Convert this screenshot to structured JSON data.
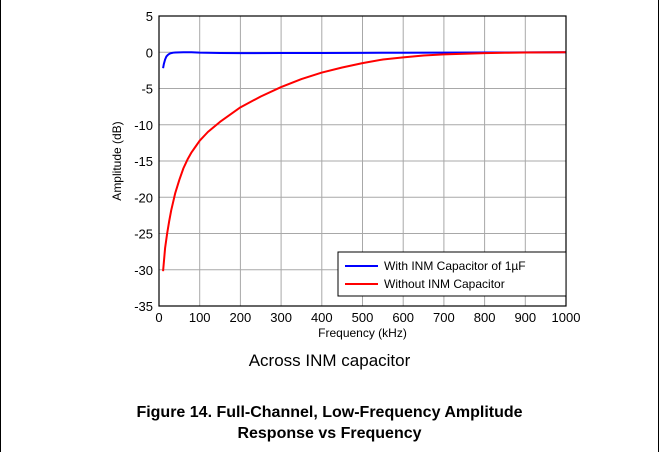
{
  "chart_data": {
    "type": "line",
    "title": "",
    "xlabel": "Frequency (kHz)",
    "ylabel": "Amplitude (dB)",
    "xlim": [
      0,
      1000
    ],
    "ylim": [
      -35,
      5
    ],
    "xticks": [
      0,
      100,
      200,
      300,
      400,
      500,
      600,
      700,
      800,
      900,
      1000
    ],
    "yticks": [
      5,
      0,
      -5,
      -10,
      -15,
      -20,
      -25,
      -30,
      -35
    ],
    "grid": true,
    "legend_position": "bottom-right",
    "series": [
      {
        "name": "With INM Capacitor of 1µF",
        "color": "#0000ff",
        "x": [
          10,
          12,
          15,
          18,
          22,
          26,
          30,
          35,
          40,
          50,
          60,
          80,
          100,
          150,
          200,
          300,
          400,
          500,
          600,
          700,
          800,
          900,
          1000
        ],
        "y": [
          -2.2,
          -1.6,
          -1.0,
          -0.6,
          -0.35,
          -0.2,
          -0.12,
          -0.06,
          -0.03,
          -0.01,
          0,
          0,
          -0.05,
          -0.1,
          -0.12,
          -0.1,
          -0.1,
          -0.08,
          -0.06,
          -0.05,
          -0.04,
          -0.02,
          0
        ]
      },
      {
        "name": "Without INM Capacitor",
        "color": "#ff0000",
        "x": [
          10,
          15,
          20,
          25,
          30,
          40,
          50,
          60,
          70,
          80,
          90,
          100,
          120,
          150,
          200,
          250,
          300,
          350,
          400,
          450,
          500,
          550,
          600,
          650,
          700,
          750,
          800,
          850,
          900,
          950,
          1000
        ],
        "y": [
          -30.2,
          -27.0,
          -25.0,
          -23.3,
          -21.8,
          -19.4,
          -17.6,
          -16.0,
          -14.8,
          -13.8,
          -13.0,
          -12.2,
          -11.0,
          -9.6,
          -7.6,
          -6.1,
          -4.8,
          -3.7,
          -2.8,
          -2.1,
          -1.5,
          -1.0,
          -0.7,
          -0.45,
          -0.3,
          -0.2,
          -0.12,
          -0.07,
          -0.04,
          -0.02,
          0
        ]
      }
    ]
  },
  "subtitle": "Across INM capacitor",
  "caption": {
    "line1": "Figure 14. Full-Channel, Low-Frequency Amplitude",
    "line2": "Response vs Frequency"
  }
}
